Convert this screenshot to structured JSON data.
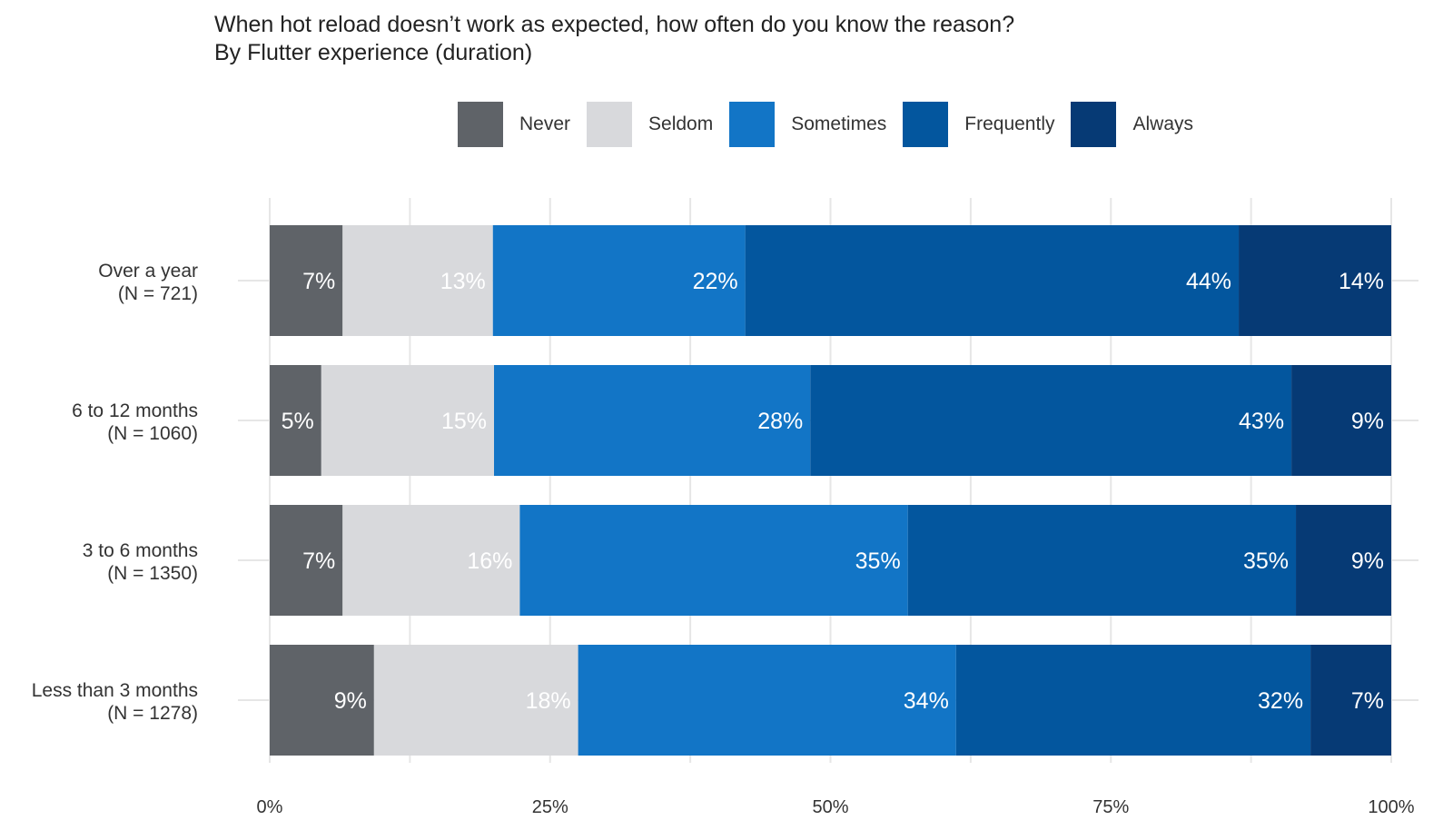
{
  "title": "When hot reload doesn’t work as expected, how often do you know the reason?",
  "subtitle": "By Flutter experience (duration)",
  "colors": {
    "Never": "#5f6368",
    "Seldom": "#d8d9dc",
    "Sometimes": "#1275c6",
    "Frequently": "#03569e",
    "Always": "#063a75",
    "label_on_dark": "#ffffff",
    "label_on_light": "#ffffff",
    "grid": "#e6e6e6"
  },
  "chart_data": {
    "type": "bar",
    "orientation": "horizontal",
    "stacked": true,
    "title": "When hot reload doesn’t work as expected, how often do you know the reason?",
    "subtitle": "By Flutter experience (duration)",
    "xlabel": "",
    "ylabel": "",
    "xlim": [
      0,
      100
    ],
    "ticks": [
      "0%",
      "25%",
      "50%",
      "75%",
      "100%"
    ],
    "legend_position": "top",
    "grid": true,
    "categories": [
      {
        "line1": "Over a year",
        "line2": "(N = 721)"
      },
      {
        "line1": "6 to 12 months",
        "line2": "(N = 1060)"
      },
      {
        "line1": "3 to 6 months",
        "line2": "(N = 1350)"
      },
      {
        "line1": "Less than 3 months",
        "line2": "(N = 1278)"
      }
    ],
    "series": [
      {
        "name": "Never",
        "values": [
          6.5,
          4.6,
          6.5,
          9.3
        ],
        "labels": [
          "7%",
          "5%",
          "7%",
          "9%"
        ]
      },
      {
        "name": "Seldom",
        "values": [
          13.4,
          15.4,
          15.8,
          18.2
        ],
        "labels": [
          "13%",
          "15%",
          "16%",
          "18%"
        ]
      },
      {
        "name": "Sometimes",
        "values": [
          22.5,
          28.2,
          34.6,
          33.7
        ],
        "labels": [
          "22%",
          "28%",
          "35%",
          "34%"
        ]
      },
      {
        "name": "Frequently",
        "values": [
          44.0,
          42.9,
          34.6,
          31.6
        ],
        "labels": [
          "44%",
          "43%",
          "35%",
          "32%"
        ]
      },
      {
        "name": "Always",
        "values": [
          13.6,
          8.9,
          8.5,
          7.2
        ],
        "labels": [
          "14%",
          "9%",
          "9%",
          "7%"
        ]
      }
    ]
  }
}
